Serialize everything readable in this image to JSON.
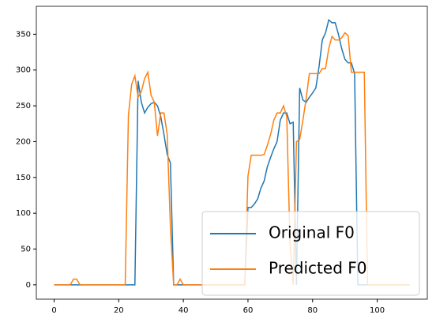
{
  "chart_data": {
    "type": "line",
    "x": [
      0,
      1,
      2,
      3,
      4,
      5,
      6,
      7,
      8,
      9,
      10,
      11,
      12,
      13,
      14,
      15,
      16,
      17,
      18,
      19,
      20,
      21,
      22,
      23,
      24,
      25,
      26,
      27,
      28,
      29,
      30,
      31,
      32,
      33,
      34,
      35,
      36,
      37,
      38,
      39,
      40,
      41,
      42,
      43,
      44,
      45,
      46,
      47,
      48,
      49,
      50,
      51,
      52,
      53,
      54,
      55,
      56,
      57,
      58,
      59,
      60,
      61,
      62,
      63,
      64,
      65,
      66,
      67,
      68,
      69,
      70,
      71,
      72,
      73,
      74,
      75,
      76,
      77,
      78,
      79,
      80,
      81,
      82,
      83,
      84,
      85,
      86,
      87,
      88,
      89,
      90,
      91,
      92,
      93,
      94,
      95,
      96,
      97,
      98,
      99,
      100,
      101,
      102,
      103,
      104,
      105,
      106,
      107,
      108,
      109,
      110
    ],
    "series": [
      {
        "name": "Original F0",
        "color": "#1f77b4",
        "values": [
          0,
          0,
          0,
          0,
          0,
          0,
          0,
          0,
          0,
          0,
          0,
          0,
          0,
          0,
          0,
          0,
          0,
          0,
          0,
          0,
          0,
          0,
          0,
          0,
          0,
          0,
          285,
          255,
          240,
          248,
          253,
          255,
          250,
          235,
          210,
          182,
          170,
          0,
          0,
          0,
          0,
          0,
          0,
          0,
          0,
          0,
          0,
          0,
          0,
          0,
          0,
          0,
          0,
          0,
          0,
          0,
          0,
          0,
          0,
          0,
          108,
          108,
          113,
          120,
          135,
          145,
          165,
          178,
          190,
          200,
          230,
          240,
          240,
          225,
          227,
          0,
          275,
          258,
          255,
          262,
          268,
          275,
          305,
          342,
          352,
          370,
          366,
          366,
          350,
          330,
          315,
          310,
          310,
          295,
          0,
          0,
          0,
          0,
          0,
          0,
          0,
          0,
          0,
          0,
          0,
          0,
          0,
          0,
          0,
          0,
          0
        ]
      },
      {
        "name": "Predicted F0",
        "color": "#ff7f0e",
        "values": [
          0,
          0,
          0,
          0,
          0,
          0,
          8,
          8,
          0,
          0,
          0,
          0,
          0,
          0,
          0,
          0,
          0,
          0,
          0,
          0,
          0,
          0,
          0,
          237,
          280,
          292,
          262,
          270,
          288,
          297,
          265,
          255,
          208,
          240,
          240,
          210,
          80,
          0,
          0,
          8,
          0,
          0,
          0,
          0,
          0,
          0,
          0,
          0,
          0,
          0,
          0,
          0,
          0,
          0,
          0,
          0,
          0,
          0,
          0,
          0,
          152,
          181,
          181,
          181,
          181,
          182,
          195,
          210,
          230,
          240,
          240,
          250,
          235,
          60,
          0,
          200,
          203,
          230,
          260,
          295,
          295,
          295,
          295,
          302,
          302,
          330,
          347,
          342,
          342,
          345,
          352,
          348,
          297,
          297,
          297,
          297,
          297,
          0,
          0,
          0,
          0,
          0,
          0,
          0,
          0,
          0,
          0,
          0,
          0,
          0,
          0
        ]
      }
    ],
    "xlim": [
      -5.5,
      115.5
    ],
    "ylim": [
      -20,
      389
    ],
    "xticks": [
      0,
      20,
      40,
      60,
      80,
      100
    ],
    "yticks": [
      0,
      50,
      100,
      150,
      200,
      250,
      300,
      350
    ],
    "legend": "lower right"
  }
}
